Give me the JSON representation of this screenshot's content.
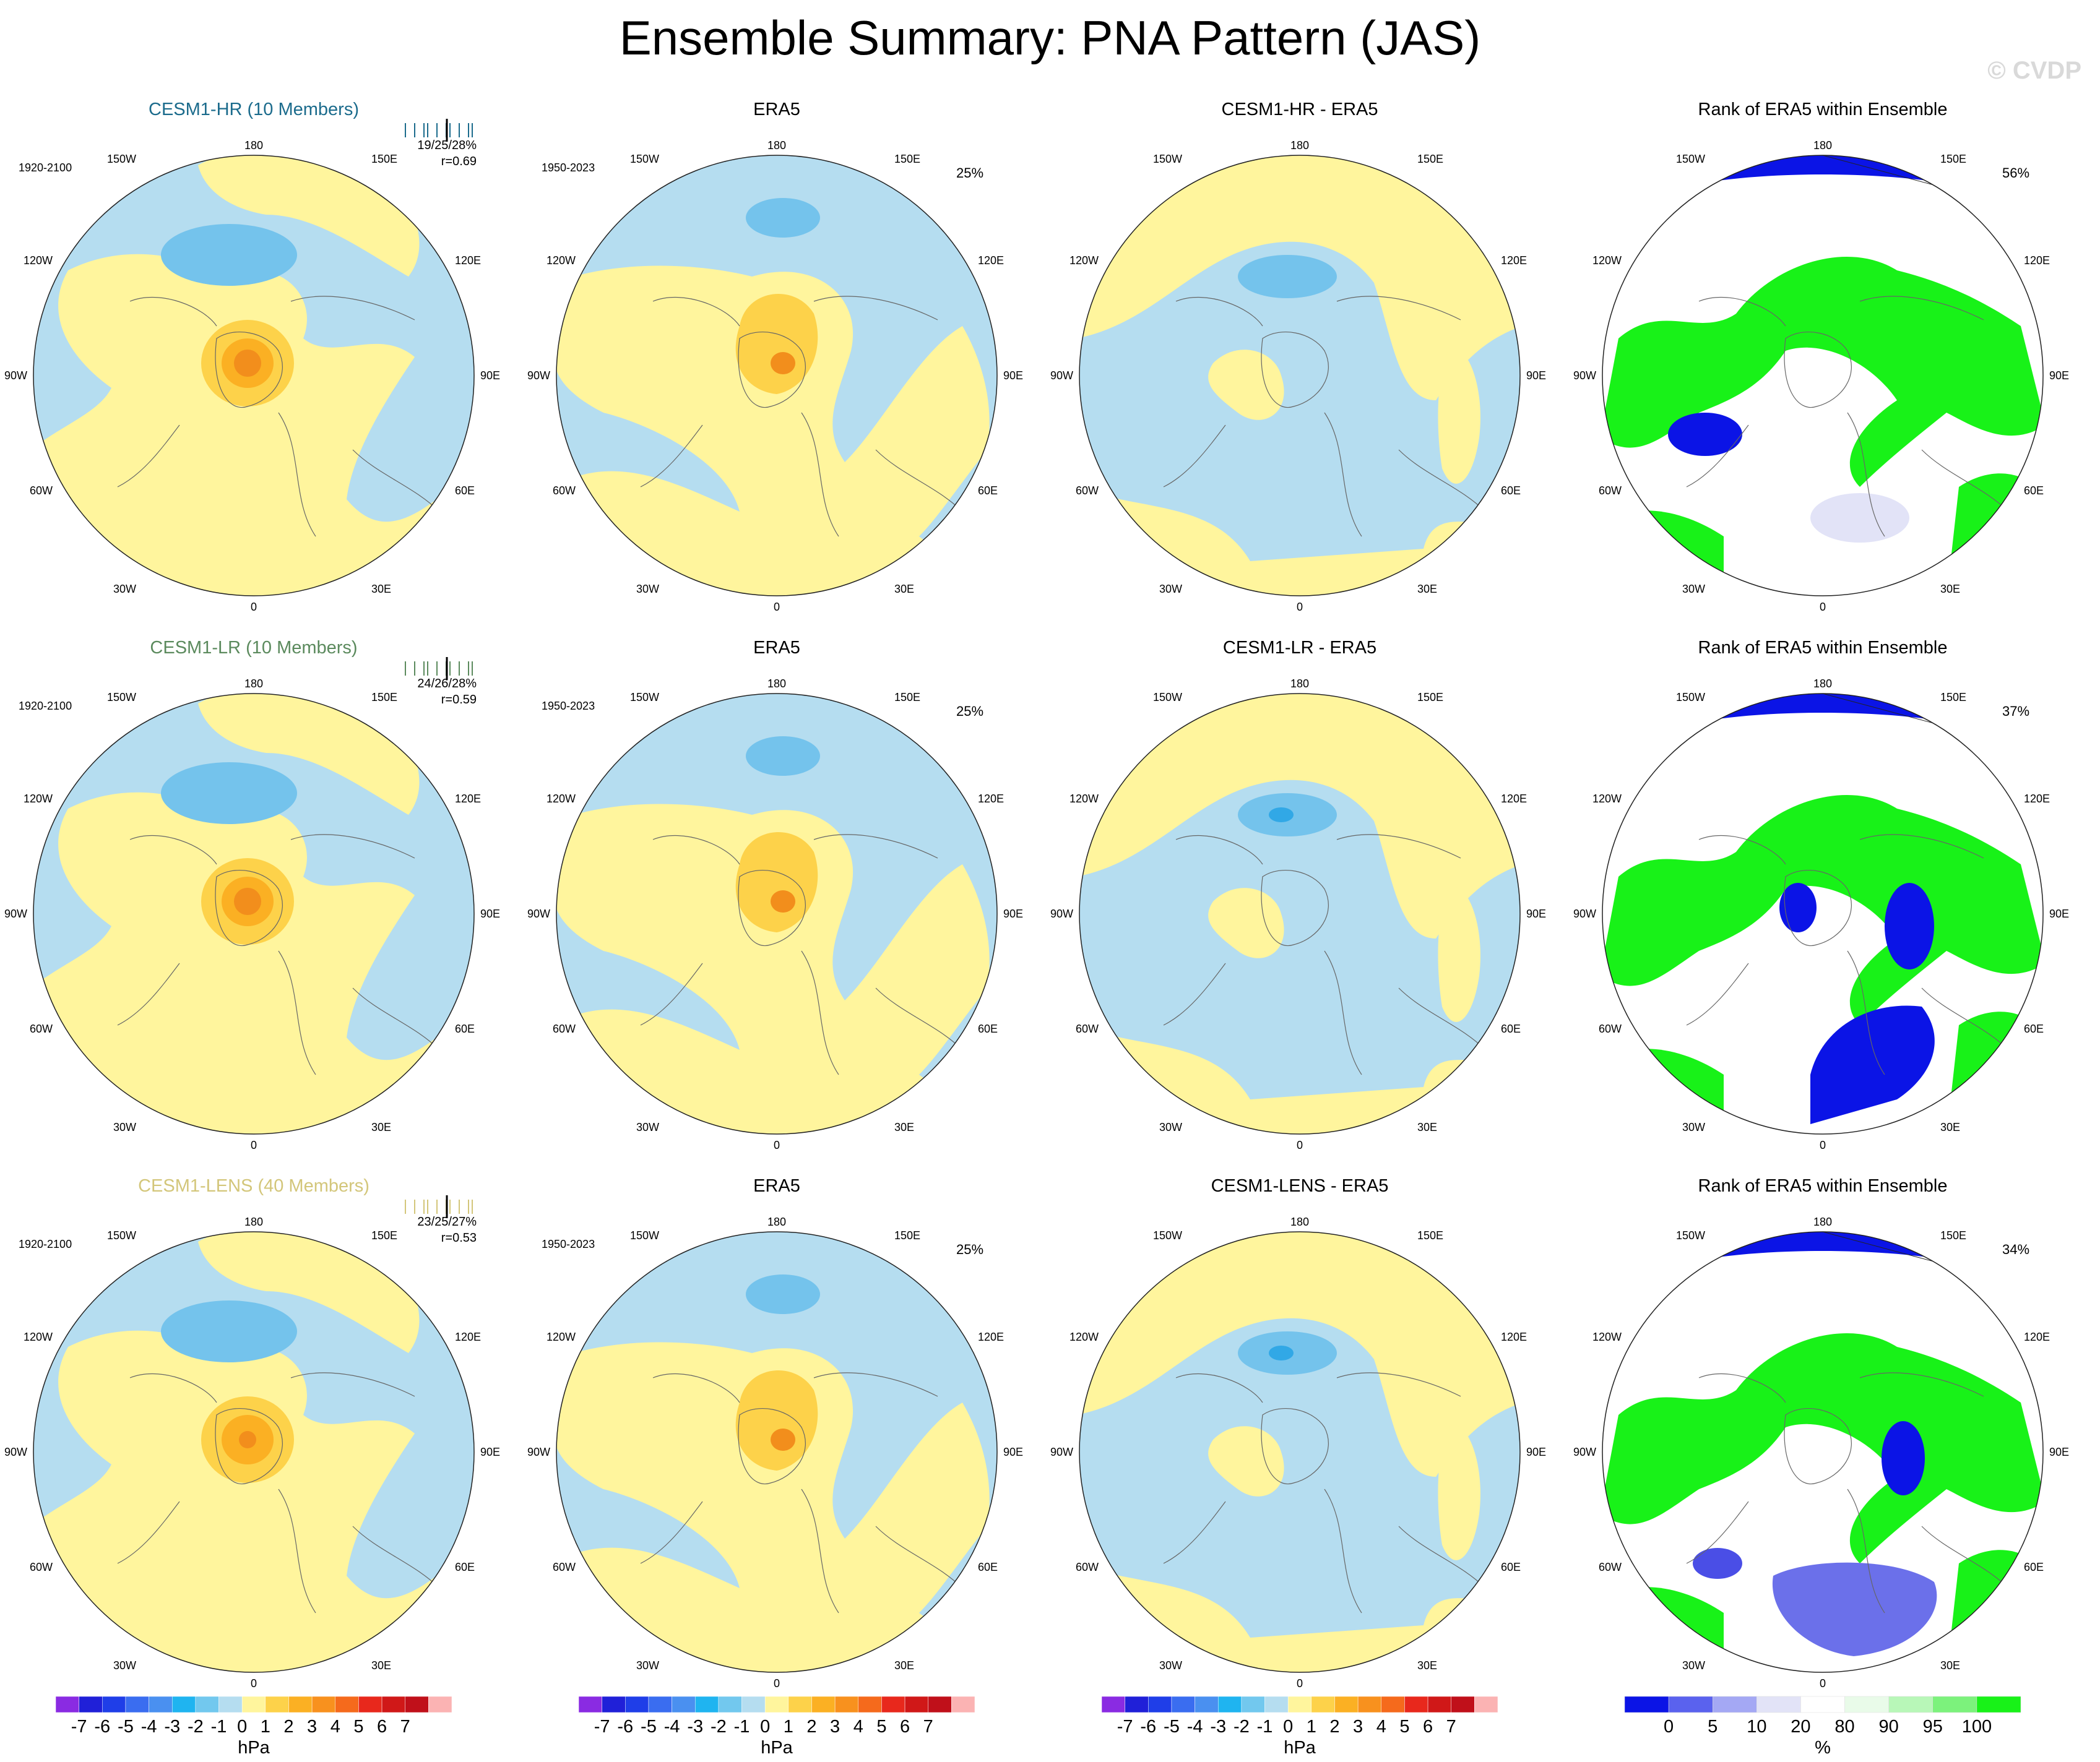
{
  "page": {
    "title": "Ensemble Summary: PNA Pattern (JAS)",
    "copyright": "© CVDP"
  },
  "colors": {
    "yellow": "#fff59d",
    "blue": "#b5ddf0",
    "blue2": "#74c3ec",
    "blue3": "#31a8e6",
    "orange1": "#fdd24a",
    "orange2": "#fbb023",
    "orange3": "#f28e1c",
    "rank_blue": "#0b14e6",
    "rank_green": "#18f218",
    "rank_lav": "#e2e3f7",
    "model_hr": "#1b6b8c",
    "model_lr": "#5b8a5d",
    "model_lens": "#d3c67a"
  },
  "rows": [
    {
      "model": {
        "title": "CESM1-HR (10 Members)",
        "years": "1920-2100",
        "stats": "19/25/28%",
        "r": "r=0.69",
        "color_key": "model_hr"
      },
      "obs": {
        "title": "ERA5",
        "years": "1950-2023",
        "pct": "25%"
      },
      "diff": {
        "title": "CESM1-HR - ERA5"
      },
      "rank": {
        "title": "Rank of ERA5 within Ensemble",
        "pct": "56%"
      }
    },
    {
      "model": {
        "title": "CESM1-LR (10 Members)",
        "years": "1920-2100",
        "stats": "24/26/28%",
        "r": "r=0.59",
        "color_key": "model_lr"
      },
      "obs": {
        "title": "ERA5",
        "years": "1950-2023",
        "pct": "25%"
      },
      "diff": {
        "title": "CESM1-LR - ERA5"
      },
      "rank": {
        "title": "Rank of ERA5 within Ensemble",
        "pct": "37%"
      }
    },
    {
      "model": {
        "title": "CESM1-LENS (40 Members)",
        "years": "1920-2100",
        "stats": "23/25/27%",
        "r": "r=0.53",
        "color_key": "model_lens"
      },
      "obs": {
        "title": "ERA5",
        "years": "1950-2023",
        "pct": "25%"
      },
      "diff": {
        "title": "CESM1-LENS - ERA5"
      },
      "rank": {
        "title": "Rank of ERA5 within Ensemble",
        "pct": "34%"
      }
    }
  ],
  "map_labels": {
    "top": "180",
    "bottom": "0",
    "left": "90W",
    "right": "90E",
    "ul1": "150W",
    "ul2": "120W",
    "ll1": "60W",
    "ll2": "30W",
    "ur1": "150E",
    "ur2": "120E",
    "lr1": "60E",
    "lr2": "30E"
  },
  "chart_data": [
    {
      "type": "colorbar",
      "unit": "hPa",
      "tick_labels": [
        "-7",
        "-6",
        "-5",
        "-4",
        "-3",
        "-2",
        "-1",
        "0",
        "1",
        "2",
        "3",
        "4",
        "5",
        "6",
        "7"
      ],
      "colors": [
        "#8a2be2",
        "#2020d8",
        "#1f3ee8",
        "#3a6df0",
        "#4a90f0",
        "#1fb4f0",
        "#72c8ee",
        "#b5ddf0",
        "#fff59d",
        "#fdd24a",
        "#fbb023",
        "#f8911e",
        "#f56a1c",
        "#e8281c",
        "#d01818",
        "#c0101a",
        "#fbb3b3"
      ]
    },
    {
      "type": "colorbar",
      "unit": "%",
      "tick_labels": [
        "0",
        "5",
        "10",
        "20",
        "80",
        "90",
        "95",
        "100"
      ],
      "colors": [
        "#0b14e6",
        "#5a62ee",
        "#a4a8f4",
        "#e2e3f7",
        "#ffffff",
        "#e9fbe9",
        "#b8f7b8",
        "#7cf27c",
        "#18f218"
      ]
    }
  ]
}
